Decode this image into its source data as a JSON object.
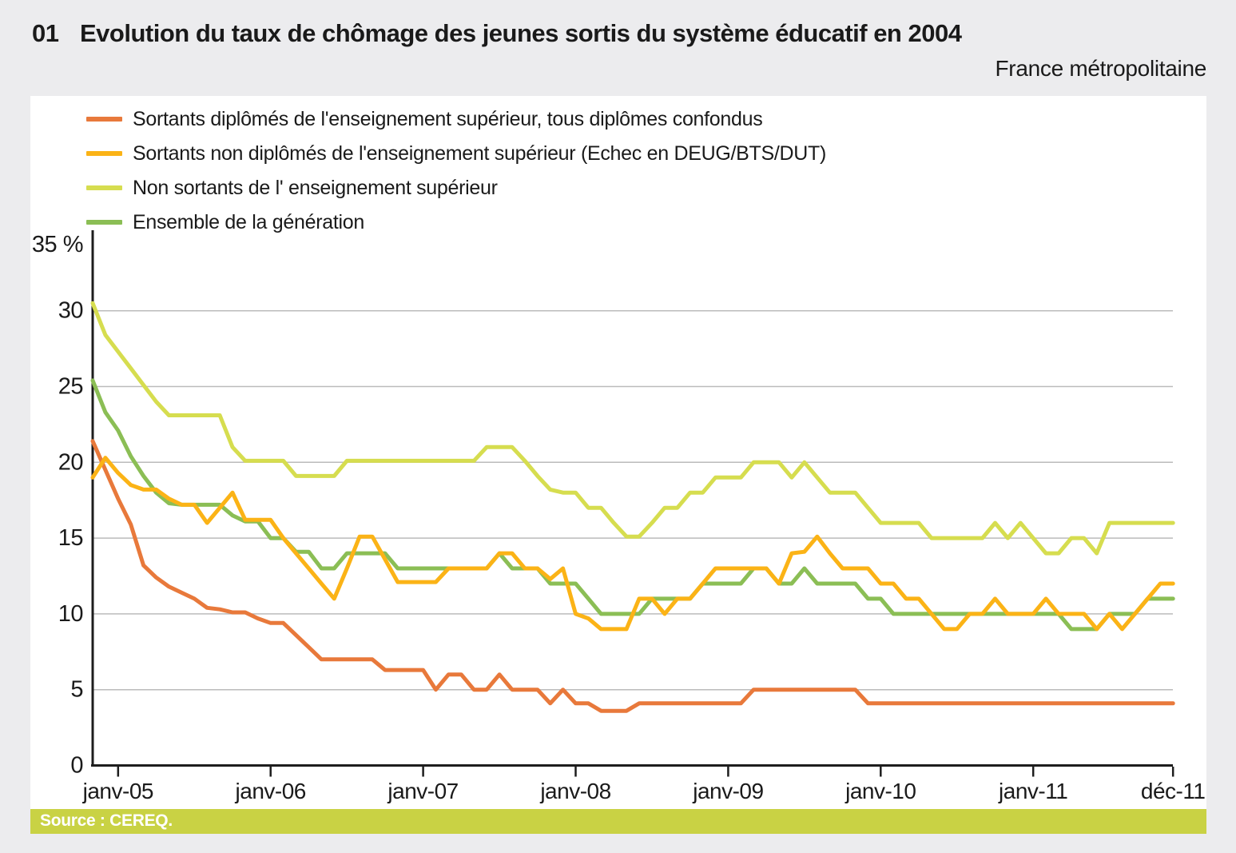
{
  "header": {
    "number": "01",
    "title": "Evolution du taux de chômage des jeunes sortis du système éducatif en 2004",
    "subtitle": "France métropolitaine"
  },
  "source": {
    "label": "Source : CEREQ."
  },
  "colors": {
    "axis": "#1D1D1D",
    "gridline": "#BBBBBB",
    "panel_background": "#FFFFFF",
    "page_background": "#ECECEE",
    "source_bar": "#C9D244"
  },
  "chart_data": {
    "type": "line",
    "title": "Evolution du taux de chômage des jeunes sortis du système éducatif en 2004",
    "subtitle": "France métropolitaine",
    "ylabel": "%",
    "ylim": [
      0,
      35
    ],
    "yticks": [
      0,
      5,
      10,
      15,
      20,
      25,
      30,
      35
    ],
    "ytick_labels": [
      "0",
      "5",
      "10",
      "15",
      "20",
      "25",
      "30",
      "35 %"
    ],
    "grid": true,
    "legend_position": "top-left",
    "x_axis_ticks": [
      "janv-05",
      "janv-06",
      "janv-07",
      "janv-08",
      "janv-09",
      "janv-10",
      "janv-11",
      "déc-11"
    ],
    "x": [
      "nov-04",
      "déc-04",
      "janv-05",
      "févr-05",
      "mars-05",
      "avr-05",
      "mai-05",
      "juin-05",
      "juil-05",
      "août-05",
      "sept-05",
      "oct-05",
      "nov-05",
      "déc-05",
      "janv-06",
      "févr-06",
      "mars-06",
      "avr-06",
      "mai-06",
      "juin-06",
      "juil-06",
      "août-06",
      "sept-06",
      "oct-06",
      "nov-06",
      "déc-06",
      "janv-07",
      "févr-07",
      "mars-07",
      "avr-07",
      "mai-07",
      "juin-07",
      "juil-07",
      "août-07",
      "sept-07",
      "oct-07",
      "nov-07",
      "déc-07",
      "janv-08",
      "févr-08",
      "mars-08",
      "avr-08",
      "mai-08",
      "juin-08",
      "juil-08",
      "août-08",
      "sept-08",
      "oct-08",
      "nov-08",
      "déc-08",
      "janv-09",
      "févr-09",
      "mars-09",
      "avr-09",
      "mai-09",
      "juin-09",
      "juil-09",
      "août-09",
      "sept-09",
      "oct-09",
      "nov-09",
      "déc-09",
      "janv-10",
      "févr-10",
      "mars-10",
      "avr-10",
      "mai-10",
      "juin-10",
      "juil-10",
      "août-10",
      "sept-10",
      "oct-10",
      "nov-10",
      "déc-10",
      "janv-11",
      "févr-11",
      "mars-11",
      "avr-11",
      "mai-11",
      "juin-11",
      "juil-11",
      "août-11",
      "sept-11",
      "oct-11",
      "nov-11",
      "déc-11"
    ],
    "series": [
      {
        "name": "Sortants diplômés de l'enseignement supérieur, tous diplômes confondus",
        "color": "#E8793B",
        "values": [
          21.4,
          19.5,
          17.6,
          15.9,
          13.2,
          12.4,
          11.8,
          11.4,
          11.0,
          10.4,
          10.3,
          10.1,
          10.1,
          9.7,
          9.4,
          9.4,
          8.6,
          7.8,
          7.0,
          7.0,
          7.0,
          7.0,
          7.0,
          6.3,
          6.3,
          6.3,
          6.3,
          5.0,
          6.0,
          6.0,
          5.0,
          5.0,
          6.0,
          5.0,
          5.0,
          5.0,
          4.1,
          5.0,
          4.1,
          4.1,
          3.6,
          3.6,
          3.6,
          4.1,
          4.1,
          4.1,
          4.1,
          4.1,
          4.1,
          4.1,
          4.1,
          4.1,
          5.0,
          5.0,
          5.0,
          5.0,
          5.0,
          5.0,
          5.0,
          5.0,
          5.0,
          4.1,
          4.1,
          4.1,
          4.1,
          4.1,
          4.1,
          4.1,
          4.1,
          4.1,
          4.1,
          4.1,
          4.1,
          4.1,
          4.1,
          4.1,
          4.1,
          4.1,
          4.1,
          4.1,
          4.1,
          4.1,
          4.1,
          4.1,
          4.1,
          4.1
        ]
      },
      {
        "name": "Sortants non diplômés de l'enseignement supérieur (Echec en DEUG/BTS/DUT)",
        "color": "#FBB316",
        "values": [
          19.0,
          20.3,
          19.3,
          18.5,
          18.2,
          18.2,
          17.6,
          17.2,
          17.2,
          16.0,
          17.0,
          18.0,
          16.2,
          16.2,
          16.2,
          15.0,
          14.0,
          13.0,
          12.0,
          11.0,
          13.0,
          15.1,
          15.1,
          13.6,
          12.1,
          12.1,
          12.1,
          12.1,
          13.0,
          13.0,
          13.0,
          13.0,
          14.0,
          14.0,
          13.0,
          13.0,
          12.3,
          13.0,
          10.0,
          9.7,
          9.0,
          9.0,
          9.0,
          11.0,
          11.0,
          10.0,
          11.0,
          11.0,
          12.0,
          13.0,
          13.0,
          13.0,
          13.0,
          13.0,
          12.0,
          14.0,
          14.1,
          15.1,
          14.0,
          13.0,
          13.0,
          13.0,
          12.0,
          12.0,
          11.0,
          11.0,
          10.0,
          9.0,
          9.0,
          10.0,
          10.0,
          11.0,
          10.0,
          10.0,
          10.0,
          11.0,
          10.0,
          10.0,
          10.0,
          9.0,
          10.0,
          9.0,
          10.0,
          11.0,
          12.0,
          12.0
        ]
      },
      {
        "name": "Non sortants de l' enseignement supérieur",
        "color": "#D6DD4F",
        "values": [
          30.5,
          28.4,
          27.3,
          26.2,
          25.1,
          24.0,
          23.1,
          23.1,
          23.1,
          23.1,
          23.1,
          21.0,
          20.1,
          20.1,
          20.1,
          20.1,
          19.1,
          19.1,
          19.1,
          19.1,
          20.1,
          20.1,
          20.1,
          20.1,
          20.1,
          20.1,
          20.1,
          20.1,
          20.1,
          20.1,
          20.1,
          21.0,
          21.0,
          21.0,
          20.1,
          19.1,
          18.2,
          18.0,
          18.0,
          17.0,
          17.0,
          16.0,
          15.1,
          15.1,
          16.0,
          17.0,
          17.0,
          18.0,
          18.0,
          19.0,
          19.0,
          19.0,
          20.0,
          20.0,
          20.0,
          19.0,
          20.0,
          19.0,
          18.0,
          18.0,
          18.0,
          17.0,
          16.0,
          16.0,
          16.0,
          16.0,
          15.0,
          15.0,
          15.0,
          15.0,
          15.0,
          16.0,
          15.0,
          16.0,
          15.0,
          14.0,
          14.0,
          15.0,
          15.0,
          14.0,
          16.0,
          16.0,
          16.0,
          16.0,
          16.0,
          16.0
        ]
      },
      {
        "name": "Ensemble de la génération",
        "color": "#8BBE55",
        "values": [
          25.4,
          23.3,
          22.1,
          20.4,
          19.1,
          18.0,
          17.3,
          17.2,
          17.2,
          17.2,
          17.2,
          16.5,
          16.1,
          16.1,
          15.0,
          15.0,
          14.1,
          14.1,
          13.0,
          13.0,
          14.0,
          14.0,
          14.0,
          14.0,
          13.0,
          13.0,
          13.0,
          13.0,
          13.0,
          13.0,
          13.0,
          13.0,
          14.0,
          13.0,
          13.0,
          13.0,
          12.0,
          12.0,
          12.0,
          11.0,
          10.0,
          10.0,
          10.0,
          10.0,
          11.0,
          11.0,
          11.0,
          11.0,
          12.0,
          12.0,
          12.0,
          12.0,
          13.0,
          13.0,
          12.0,
          12.0,
          13.0,
          12.0,
          12.0,
          12.0,
          12.0,
          11.0,
          11.0,
          10.0,
          10.0,
          10.0,
          10.0,
          10.0,
          10.0,
          10.0,
          10.0,
          10.0,
          10.0,
          10.0,
          10.0,
          10.0,
          10.0,
          9.0,
          9.0,
          9.0,
          10.0,
          10.0,
          10.0,
          11.0,
          11.0,
          11.0
        ]
      }
    ]
  }
}
